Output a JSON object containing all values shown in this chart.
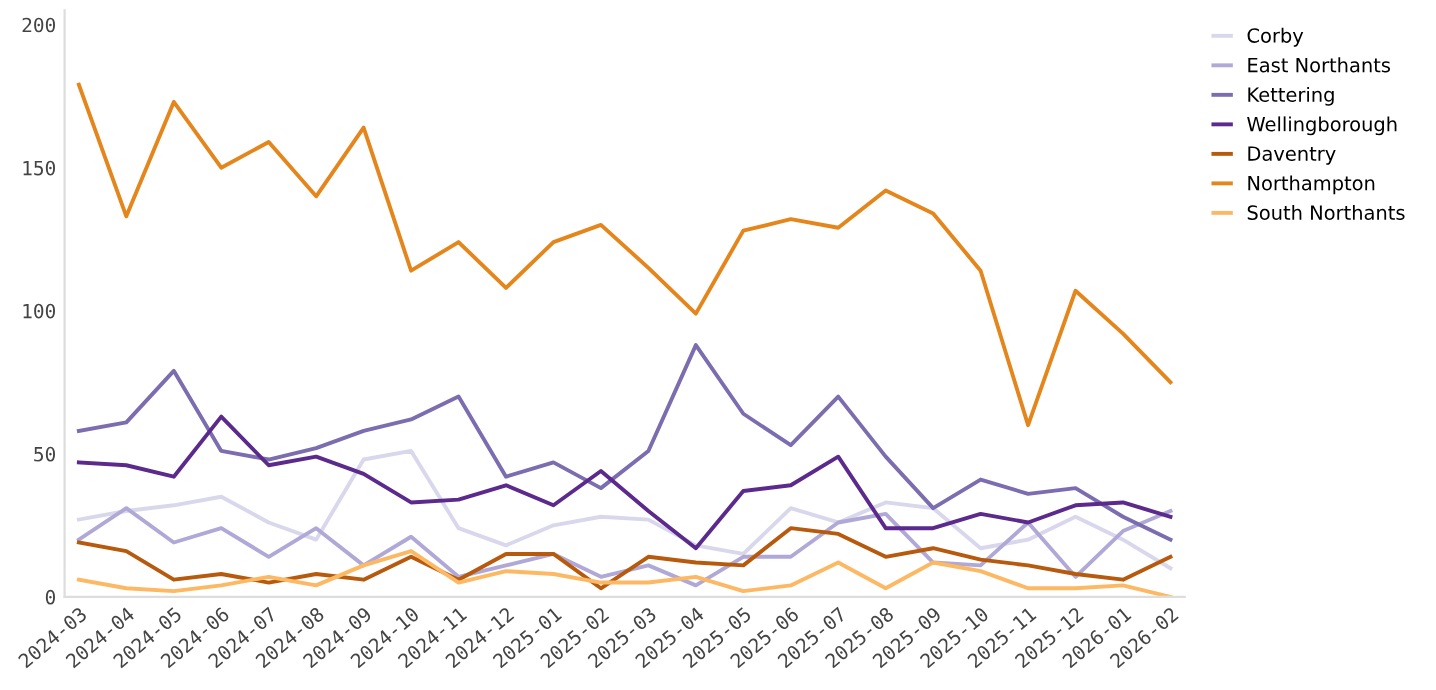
{
  "chart_data": {
    "type": "line",
    "categories": [
      "2024-03",
      "2024-04",
      "2024-05",
      "2024-06",
      "2024-07",
      "2024-08",
      "2024-09",
      "2024-10",
      "2024-11",
      "2024-12",
      "2025-01",
      "2025-02",
      "2025-03",
      "2025-04",
      "2025-05",
      "2025-06",
      "2025-07",
      "2025-08",
      "2025-09",
      "2025-10",
      "2025-11",
      "2025-12",
      "2026-01",
      "2026-02"
    ],
    "series": [
      {
        "name": "Corby",
        "color": "#d9d7ec",
        "values": [
          27,
          30,
          32,
          35,
          26,
          20,
          48,
          51,
          24,
          18,
          25,
          28,
          27,
          18,
          15,
          31,
          26,
          33,
          31,
          17,
          20,
          28,
          20,
          10
        ]
      },
      {
        "name": "East Northants",
        "color": "#b0a8d6",
        "values": [
          20,
          31,
          19,
          24,
          14,
          24,
          11,
          21,
          7,
          11,
          15,
          7,
          11,
          4,
          14,
          14,
          26,
          29,
          12,
          11,
          26,
          7,
          23,
          30
        ]
      },
      {
        "name": "Kettering",
        "color": "#7c6cb0",
        "values": [
          58,
          61,
          79,
          51,
          48,
          52,
          58,
          62,
          70,
          42,
          47,
          38,
          51,
          88,
          64,
          53,
          70,
          49,
          31,
          41,
          36,
          38,
          28,
          20
        ]
      },
      {
        "name": "Wellingborough",
        "color": "#5b2a8c",
        "values": [
          47,
          46,
          42,
          63,
          46,
          49,
          43,
          33,
          34,
          39,
          32,
          44,
          30,
          17,
          37,
          39,
          49,
          24,
          24,
          29,
          26,
          32,
          33,
          28
        ]
      },
      {
        "name": "Daventry",
        "color": "#b85a0d",
        "values": [
          19,
          16,
          6,
          8,
          5,
          8,
          6,
          14,
          6,
          15,
          15,
          3,
          14,
          12,
          11,
          24,
          22,
          14,
          17,
          13,
          11,
          8,
          6,
          14
        ]
      },
      {
        "name": "Northampton",
        "color": "#e5861c",
        "values": [
          179,
          133,
          173,
          150,
          159,
          140,
          164,
          114,
          124,
          108,
          124,
          130,
          115,
          99,
          128,
          132,
          129,
          142,
          134,
          114,
          60,
          107,
          92,
          75
        ]
      },
      {
        "name": "South Northants",
        "color": "#fdb863",
        "values": [
          6,
          3,
          2,
          4,
          7,
          4,
          11,
          16,
          5,
          9,
          8,
          5,
          5,
          7,
          2,
          4,
          12,
          3,
          12,
          9,
          3,
          3,
          4,
          0
        ]
      }
    ],
    "ylim": [
      0,
      205
    ],
    "yticks": [
      0,
      50,
      100,
      150,
      200
    ],
    "grid": false,
    "legend": "top right",
    "line_style": "solid",
    "marker": "none"
  }
}
